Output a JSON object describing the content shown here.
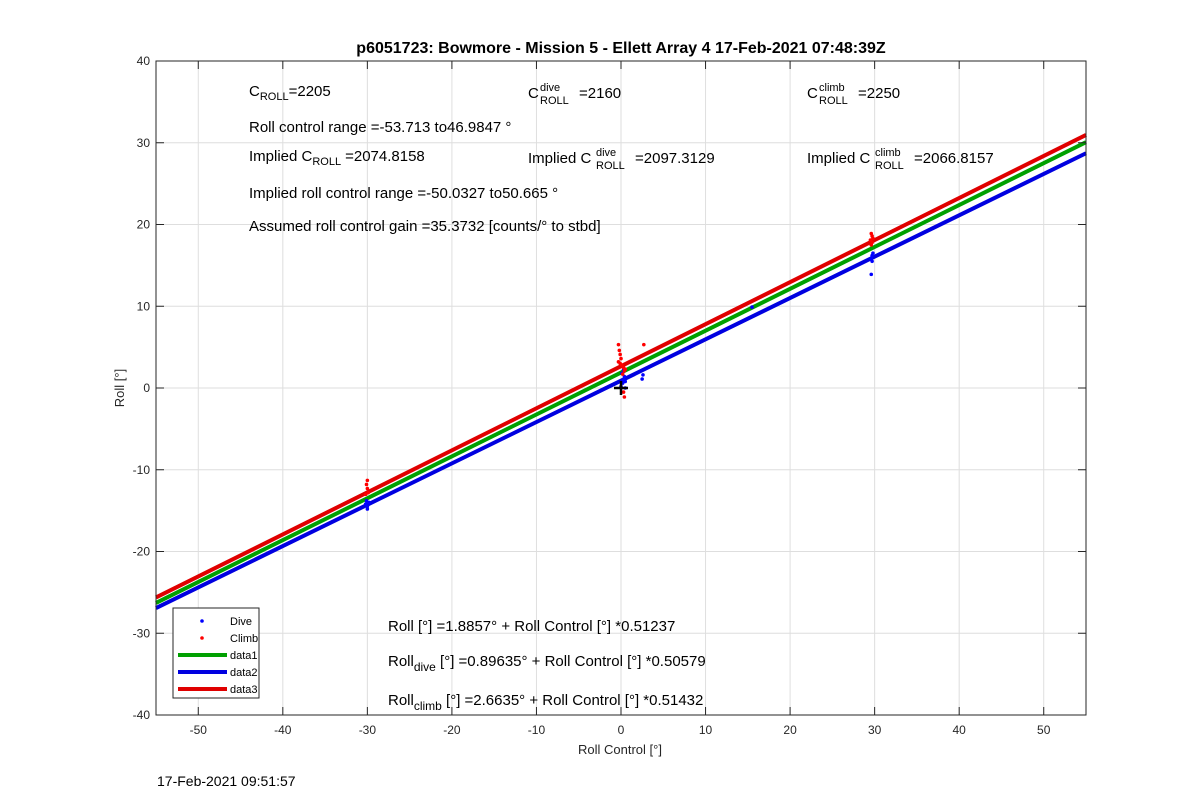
{
  "footer_timestamp": "17-Feb-2021 09:51:57",
  "chart_data": {
    "type": "scatter",
    "title": "p6051723: Bowmore - Mission 5 - Ellett Array 4 17-Feb-2021 07:48:39Z",
    "xlabel": "Roll Control [°]",
    "ylabel": "Roll [°]",
    "xlim": [
      -55,
      55
    ],
    "ylim": [
      -40,
      40
    ],
    "xticks": [
      -50,
      -40,
      -30,
      -20,
      -10,
      0,
      10,
      20,
      30,
      40,
      50
    ],
    "yticks": [
      -40,
      -30,
      -20,
      -10,
      0,
      10,
      20,
      30,
      40
    ],
    "grid": true,
    "legend_position": "bottom-left",
    "series": [
      {
        "name": "Dive",
        "kind": "points",
        "color": "#0000ff",
        "points": [
          [
            -30,
            -14.8
          ],
          [
            -30,
            -14.5
          ],
          [
            -30.2,
            -14.2
          ],
          [
            -29.8,
            -14.0
          ],
          [
            -30.1,
            -13.8
          ],
          [
            0,
            0.2
          ],
          [
            0.2,
            0.6
          ],
          [
            0.3,
            1.0
          ],
          [
            0.4,
            1.4
          ],
          [
            0.5,
            0.8
          ],
          [
            0.1,
            1.8
          ],
          [
            0.3,
            2.2
          ],
          [
            0.5,
            0.0
          ],
          [
            2.5,
            1.1
          ],
          [
            2.6,
            1.6
          ],
          [
            15.5,
            9.9
          ],
          [
            29.6,
            13.9
          ],
          [
            29.6,
            15.8
          ],
          [
            29.7,
            16.2
          ],
          [
            29.8,
            16.5
          ],
          [
            29.7,
            15.5
          ]
        ]
      },
      {
        "name": "Climb",
        "kind": "points",
        "color": "#ff0000",
        "points": [
          [
            -30,
            -11.3
          ],
          [
            -30.1,
            -11.8
          ],
          [
            -30,
            -12.3
          ],
          [
            -29.9,
            -12.8
          ],
          [
            -30.2,
            -13.0
          ],
          [
            -0.3,
            5.3
          ],
          [
            -0.2,
            4.6
          ],
          [
            -0.1,
            4.1
          ],
          [
            0,
            3.6
          ],
          [
            -0.3,
            3.2
          ],
          [
            0.1,
            2.8
          ],
          [
            0.3,
            2.5
          ],
          [
            0.4,
            2.1
          ],
          [
            0.2,
            1.7
          ],
          [
            -0.1,
            3.0
          ],
          [
            0.5,
            2.3
          ],
          [
            0.3,
            -0.5
          ],
          [
            0.4,
            -1.1
          ],
          [
            2.7,
            5.3
          ],
          [
            29.6,
            18.9
          ],
          [
            29.7,
            18.6
          ],
          [
            29.8,
            18.3
          ],
          [
            29.5,
            18.1
          ],
          [
            29.7,
            17.8
          ],
          [
            29.6,
            17.5
          ]
        ]
      },
      {
        "name": "data1",
        "kind": "line",
        "color": "#00a000",
        "intercept": 1.8857,
        "slope": 0.51237
      },
      {
        "name": "data2",
        "kind": "line",
        "color": "#0000e0",
        "intercept": 0.89635,
        "slope": 0.50579
      },
      {
        "name": "data3",
        "kind": "line",
        "color": "#e00000",
        "intercept": 2.6635,
        "slope": 0.51432
      }
    ],
    "marker": {
      "x": 0,
      "y": 0,
      "symbol": "+",
      "color": "#000000"
    },
    "annotations": {
      "c_roll": {
        "base": "C",
        "sub": "ROLL",
        "value": "=2205"
      },
      "c_dive": {
        "base": "C",
        "sup": "dive",
        "sub": "ROLL",
        "value": "=2160"
      },
      "c_climb": {
        "base": "C",
        "sup": "climb",
        "sub": "ROLL",
        "value": "=2250"
      },
      "roll_control_range": "Roll control range =-53.713 to46.9847 °",
      "implied_c_roll": {
        "pre": "Implied C",
        "sub": "ROLL",
        "value": "=2074.8158"
      },
      "implied_c_dive": {
        "pre": "Implied C",
        "sup": "dive",
        "sub": "ROLL",
        "value": "=2097.3129"
      },
      "implied_c_climb": {
        "pre": "Implied C",
        "sup": "climb",
        "sub": "ROLL",
        "value": "=2066.8157"
      },
      "implied_range": "Implied roll control range =-50.0327 to50.665 °",
      "assumed_gain": "Assumed roll control gain =35.3732 [counts/° to stbd]",
      "fit_all": "Roll [°] =1.8857° + Roll Control [°] *0.51237",
      "fit_dive": {
        "base": "Roll",
        "sub": "dive",
        "rest": " [°] =0.89635° + Roll Control [°] *0.50579"
      },
      "fit_climb": {
        "base": "Roll",
        "sub": "climb",
        "rest": " [°] =2.6635° + Roll Control [°] *0.51432"
      }
    }
  }
}
